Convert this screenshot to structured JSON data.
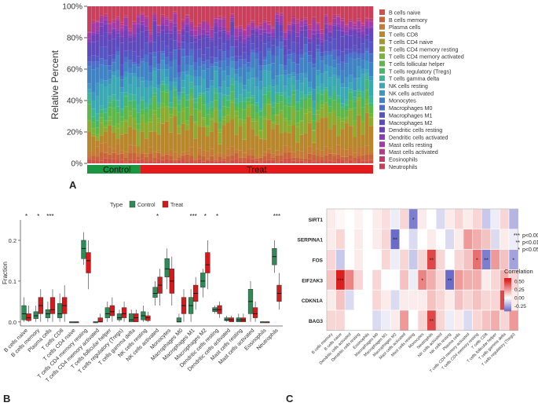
{
  "panels": {
    "a": "A",
    "b": "B",
    "c": "C"
  },
  "chart_data": [
    {
      "id": "A",
      "type": "bar",
      "stacked": true,
      "ylabel": "Relative Percent",
      "yticks": [
        "0%",
        "20%",
        "40%",
        "60%",
        "80%",
        "100%"
      ],
      "n_samples": 70,
      "n_control": 13,
      "groups": [
        {
          "name": "Control",
          "color": "#1a9641"
        },
        {
          "name": "Treat",
          "color": "#e41a1c"
        }
      ],
      "cell_types": [
        "B cells naive",
        "B cells memory",
        "Plasma cells",
        "T cells CD8",
        "T cells CD4 naive",
        "T cells CD4 memory resting",
        "T cells CD4 memory activated",
        "T cells follicular helper",
        "T cells regulatory (Tregs)",
        "T cells gamma delta",
        "NK cells resting",
        "NK cells activated",
        "Monocytes",
        "Macrophages M0",
        "Macrophages M1",
        "Macrophages M2",
        "Dendritic cells resting",
        "Dendritic cells activated",
        "Mast cells resting",
        "Mast cells activated",
        "Eosinophils",
        "Neutrophils"
      ],
      "colors": [
        "#d2504a",
        "#c8643a",
        "#c57a35",
        "#b8872b",
        "#a59a2e",
        "#8faa30",
        "#77b538",
        "#5eb748",
        "#47b76a",
        "#3fb496",
        "#3aa9b4",
        "#3c98c0",
        "#4083c5",
        "#4a6fc8",
        "#5555c4",
        "#5e4abd",
        "#7040b8",
        "#8a3cb4",
        "#a33ba6",
        "#b53a8a",
        "#c03a70",
        "#c8405a"
      ],
      "mean_fractions": [
        0.02,
        0.03,
        0.04,
        0.15,
        0.0,
        0.08,
        0.02,
        0.06,
        0.04,
        0.03,
        0.08,
        0.05,
        0.09,
        0.05,
        0.06,
        0.08,
        0.03,
        0.02,
        0.04,
        0.01,
        0.01,
        0.1
      ]
    },
    {
      "id": "B",
      "type": "box",
      "legend_title": "Type",
      "legend": [
        {
          "name": "Control",
          "color": "#2e8b57"
        },
        {
          "name": "Treat",
          "color": "#d7191c"
        }
      ],
      "ylabel": "Fraction",
      "yticks": [
        "0.0",
        "0.1",
        "0.2"
      ],
      "ylim": [
        -0.01,
        0.25
      ],
      "categories": [
        "B cells naive",
        "B cells memory",
        "Plasma cells",
        "T cells CD8",
        "T cells CD4 naive",
        "T cells CD4 memory resting",
        "T cells CD4 memory activated",
        "T cells follicular helper",
        "T cells regulatory (Tregs)",
        "T cells gamma delta",
        "NK cells resting",
        "NK cells activated",
        "Monocytes",
        "Macrophages M0",
        "Macrophages M1",
        "Macrophages M2",
        "Dendritic cells resting",
        "Dendritic cells activated",
        "Mast cells resting",
        "Mast cells activated",
        "Eosinophils",
        "Neutrophils"
      ],
      "significance": [
        "*",
        "*",
        "***",
        "",
        "",
        "",
        "",
        "",
        "",
        "",
        "",
        "*",
        "",
        "",
        "***",
        "*",
        "*",
        "",
        "",
        "",
        "",
        "***"
      ],
      "control": [
        [
          0.0,
          0.005,
          0.02,
          0.04,
          0.06
        ],
        [
          0.0,
          0.008,
          0.015,
          0.025,
          0.04
        ],
        [
          0.0,
          0.01,
          0.02,
          0.03,
          0.05
        ],
        [
          0.0,
          0.01,
          0.02,
          0.045,
          0.07
        ],
        [
          0.0,
          0.0,
          0.0,
          0.0,
          0.0
        ],
        [
          0.14,
          0.155,
          0.18,
          0.2,
          0.22
        ],
        [
          0.0,
          0.0,
          0.0,
          0.0,
          0.0
        ],
        [
          0.0,
          0.01,
          0.02,
          0.035,
          0.05
        ],
        [
          0.0,
          0.005,
          0.01,
          0.02,
          0.03
        ],
        [
          0.0,
          0.0,
          0.005,
          0.02,
          0.03
        ],
        [
          0.0,
          0.005,
          0.015,
          0.025,
          0.04
        ],
        [
          0.04,
          0.06,
          0.07,
          0.085,
          0.1
        ],
        [
          0.08,
          0.11,
          0.13,
          0.155,
          0.18
        ],
        [
          0.0,
          0.0,
          0.0,
          0.01,
          0.02
        ],
        [
          0.0,
          0.02,
          0.04,
          0.06,
          0.08
        ],
        [
          0.06,
          0.085,
          0.1,
          0.12,
          0.13
        ],
        [
          0.02,
          0.025,
          0.03,
          0.035,
          0.04
        ],
        [
          0.0,
          0.003,
          0.005,
          0.01,
          0.015
        ],
        [
          0.0,
          0.0,
          0.005,
          0.01,
          0.02
        ],
        [
          0.0,
          0.02,
          0.05,
          0.08,
          0.1
        ],
        [
          0.0,
          0.0,
          0.0,
          0.0,
          0.0
        ],
        [
          0.12,
          0.14,
          0.16,
          0.18,
          0.2
        ]
      ],
      "treat": [
        [
          0.0,
          0.003,
          0.01,
          0.02,
          0.04
        ],
        [
          0.0,
          0.02,
          0.04,
          0.06,
          0.08
        ],
        [
          0.0,
          0.02,
          0.03,
          0.06,
          0.08
        ],
        [
          0.0,
          0.02,
          0.04,
          0.06,
          0.09
        ],
        [
          0.0,
          0.0,
          0.0,
          0.0,
          0.0
        ],
        [
          0.08,
          0.12,
          0.15,
          0.17,
          0.2
        ],
        [
          0.0,
          0.0,
          0.0,
          0.01,
          0.02
        ],
        [
          0.0,
          0.015,
          0.025,
          0.04,
          0.06
        ],
        [
          0.0,
          0.01,
          0.02,
          0.035,
          0.05
        ],
        [
          0.0,
          0.0,
          0.01,
          0.02,
          0.03
        ],
        [
          0.0,
          0.003,
          0.01,
          0.015,
          0.025
        ],
        [
          0.04,
          0.07,
          0.09,
          0.11,
          0.13
        ],
        [
          0.04,
          0.07,
          0.1,
          0.13,
          0.16
        ],
        [
          0.0,
          0.02,
          0.04,
          0.06,
          0.08
        ],
        [
          0.03,
          0.05,
          0.07,
          0.09,
          0.11
        ],
        [
          0.08,
          0.12,
          0.14,
          0.17,
          0.2
        ],
        [
          0.01,
          0.02,
          0.03,
          0.04,
          0.05
        ],
        [
          0.0,
          0.0,
          0.005,
          0.01,
          0.015
        ],
        [
          0.0,
          0.0,
          0.005,
          0.01,
          0.02
        ],
        [
          0.0,
          0.01,
          0.02,
          0.035,
          0.05
        ],
        [
          0.0,
          0.0,
          0.0,
          0.0,
          0.0
        ],
        [
          0.03,
          0.05,
          0.07,
          0.09,
          0.12
        ]
      ]
    },
    {
      "id": "C",
      "type": "heatmap",
      "rows": [
        "SIRT1",
        "SERPINA1",
        "FOS",
        "EIF2AK3",
        "CDKN1A",
        "BAG3"
      ],
      "columns": [
        "B cells memory",
        "B cells naive",
        "Dendritic cells activated",
        "Dendritic cells resting",
        "Eosinophils",
        "Macrophages M0",
        "Macrophages M1",
        "Macrophages M2",
        "Mast cells activated",
        "Mast cells resting",
        "Monocytes",
        "Neutrophils",
        "NK cells activated",
        "NK cells resting",
        "Plasma cells",
        "T cells CD4 memory activated",
        "T cells CD4 memory resting",
        "T cells CD8",
        "T cells follicular helper",
        "T cells gamma delta",
        "T cells regulatory (Tregs)"
      ],
      "values": [
        [
          0.05,
          0.02,
          0.0,
          0.03,
          0.0,
          0.05,
          0.08,
          -0.05,
          0.1,
          -0.35,
          0.05,
          0.0,
          -0.1,
          0.05,
          0.1,
          0.05,
          0.1,
          -0.15,
          -0.05,
          0.1,
          -0.2
        ],
        [
          0.05,
          0.1,
          0.0,
          0.05,
          0.0,
          0.05,
          0.1,
          -0.4,
          0.0,
          -0.1,
          0.0,
          0.05,
          0.0,
          -0.1,
          0.05,
          0.25,
          0.2,
          0.15,
          -0.1,
          0.05,
          -0.05
        ],
        [
          0.1,
          -0.15,
          0.0,
          0.05,
          0.0,
          0.0,
          0.1,
          -0.05,
          0.1,
          -0.15,
          0.1,
          0.45,
          0.1,
          0.0,
          0.1,
          0.15,
          0.35,
          -0.35,
          0.25,
          0.15,
          -0.25
        ],
        [
          0.15,
          0.55,
          0.3,
          0.1,
          0.0,
          0.1,
          0.0,
          0.0,
          0.15,
          -0.05,
          0.3,
          0.2,
          0.1,
          -0.4,
          0.25,
          0.2,
          0.2,
          0.05,
          0.1,
          0.2,
          0.1
        ],
        [
          0.05,
          0.15,
          -0.1,
          0.0,
          0.0,
          0.1,
          0.05,
          -0.1,
          0.05,
          0.05,
          0.05,
          0.15,
          0.1,
          0.05,
          0.15,
          0.1,
          0.15,
          0.1,
          0.1,
          0.45,
          0.05
        ],
        [
          0.1,
          0.1,
          0.0,
          0.0,
          0.0,
          -0.1,
          -0.05,
          0.05,
          0.25,
          0.0,
          0.1,
          0.45,
          0.1,
          -0.05,
          0.05,
          -0.1,
          0.1,
          0.15,
          0.2,
          0.1,
          0.25
        ]
      ],
      "stars": [
        [
          "",
          "",
          "",
          "",
          "",
          "",
          "",
          "",
          "",
          "*",
          "",
          "",
          "",
          "",
          "",
          "",
          "",
          "",
          "",
          "",
          ""
        ],
        [
          "",
          "",
          "",
          "",
          "",
          "",
          "",
          "**",
          "",
          "",
          "",
          "",
          "",
          "",
          "",
          "",
          "",
          "",
          "",
          "",
          ""
        ],
        [
          "",
          "",
          "",
          "",
          "",
          "",
          "",
          "",
          "",
          "",
          "",
          "**",
          "",
          "",
          "",
          "",
          "*",
          "**",
          "",
          "",
          "*"
        ],
        [
          "",
          "***",
          "",
          "",
          "",
          "",
          "",
          "",
          "",
          "",
          "*",
          "",
          "",
          "**",
          "",
          "",
          "",
          "",
          "",
          "",
          ""
        ],
        [
          "",
          "",
          "",
          "",
          "",
          "",
          "",
          "",
          "",
          "",
          "",
          "",
          "",
          "",
          "",
          "",
          "",
          "",
          "",
          "*",
          ""
        ],
        [
          "",
          "",
          "",
          "",
          "",
          "",
          "",
          "",
          "",
          "",
          "",
          "**",
          "",
          "",
          "",
          "",
          "",
          "",
          "",
          "",
          ""
        ]
      ],
      "pvalue_legend": [
        {
          "sym": "***",
          "text": "p<0.001"
        },
        {
          "sym": "**",
          "text": "p<0.01"
        },
        {
          "sym": "*",
          "text": "p<0.05"
        }
      ],
      "colorbar_title": "Correlation",
      "colorbar_ticks": [
        "0.50",
        "0.25",
        "0.00",
        "-0.25"
      ],
      "colorbar_range": [
        -0.4,
        0.6
      ]
    }
  ]
}
